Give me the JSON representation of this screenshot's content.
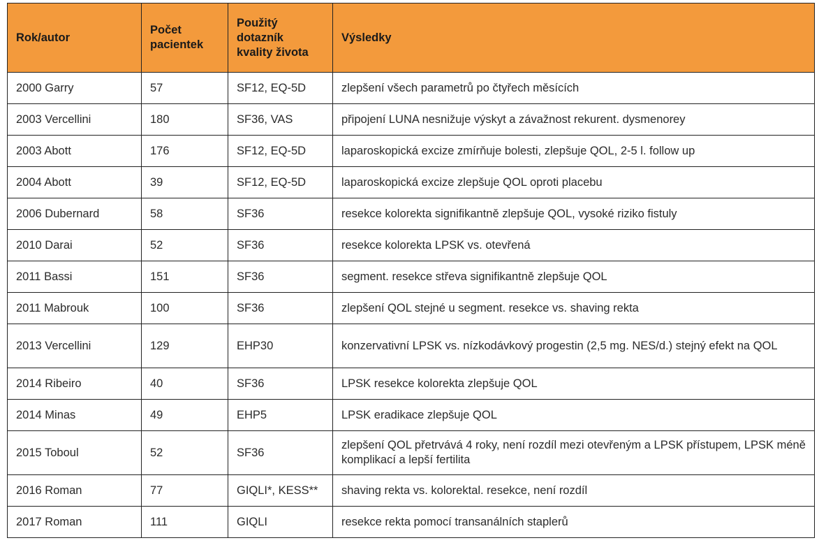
{
  "table": {
    "headers": [
      [
        "Rok/autor"
      ],
      [
        "Počet",
        "pacientek"
      ],
      [
        "Použitý",
        "dotazník",
        "kvality života"
      ],
      [
        "Výsledky"
      ]
    ],
    "rows": [
      {
        "author": "2000 Garry",
        "patients": "57",
        "questionnaire": "SF12, EQ-5D",
        "results": "zlepšení všech parametrů po čtyřech měsících"
      },
      {
        "author": "2003 Vercellini",
        "patients": "180",
        "questionnaire": "SF36, VAS",
        "results": "připojení LUNA nesnižuje výskyt a závažnost rekurent. dysmenorey"
      },
      {
        "author": "2003 Abott",
        "patients": "176",
        "questionnaire": "SF12, EQ-5D",
        "results": "laparoskopická excize zmírňuje bolesti, zlepšuje QOL, 2-5 l. follow up"
      },
      {
        "author": "2004 Abott",
        "patients": "39",
        "questionnaire": "SF12, EQ-5D",
        "results": "laparoskopická excize zlepšuje QOL oproti placebu"
      },
      {
        "author": "2006 Dubernard",
        "patients": "58",
        "questionnaire": "SF36",
        "results": "resekce kolorekta signifikantně zlepšuje QOL, vysoké riziko fistuly"
      },
      {
        "author": "2010 Darai",
        "patients": "52",
        "questionnaire": "SF36",
        "results": "resekce kolorekta LPSK vs. otevřená"
      },
      {
        "author": "2011 Bassi",
        "patients": "151",
        "questionnaire": "SF36",
        "results": "segment. resekce střeva signifikantně zlepšuje QOL"
      },
      {
        "author": "2011 Mabrouk",
        "patients": "100",
        "questionnaire": "SF36",
        "results": "zlepšení QOL stejné u segment. resekce vs. shaving rekta"
      },
      {
        "author": "2013 Vercellini",
        "patients": "129",
        "questionnaire": "EHP30",
        "results": "konzervativní LPSK vs. nízkodávkový progestin (2,5 mg. NES/d.) stejný efekt na QOL",
        "tall": true
      },
      {
        "author": "2014 Ribeiro",
        "patients": "40",
        "questionnaire": "SF36",
        "results": "LPSK resekce kolorekta zlepšuje QOL"
      },
      {
        "author": "2014 Minas",
        "patients": "49",
        "questionnaire": "EHP5",
        "results": "LPSK eradikace zlepšuje QOL"
      },
      {
        "author": "2015 Toboul",
        "patients": "52",
        "questionnaire": "SF36",
        "results": "zlepšení QOL přetrvává 4 roky, není rozdíl mezi otevřeným a LPSK přístupem, LPSK méně komplikací a lepší fertilita",
        "tall": true
      },
      {
        "author": "2016 Roman",
        "patients": "77",
        "questionnaire": "GIQLI*, KESS**",
        "results": "shaving rekta vs. kolorektal. resekce, není rozdíl"
      },
      {
        "author": "2017 Roman",
        "patients": "111",
        "questionnaire": "GIQLI",
        "results": "resekce rekta pomocí transanálních staplerů"
      }
    ]
  }
}
